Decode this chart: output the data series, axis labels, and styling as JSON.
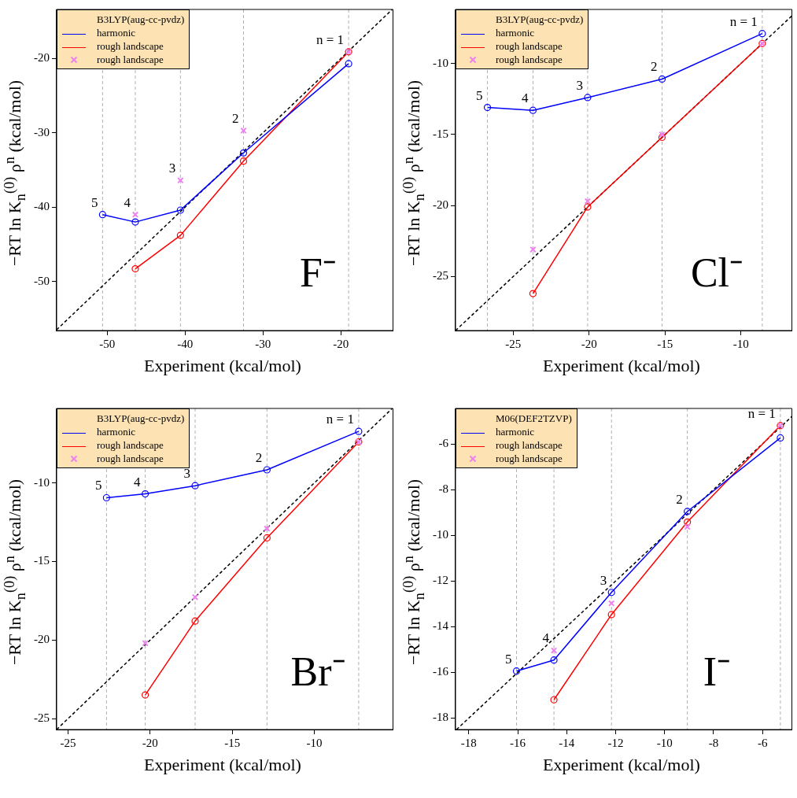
{
  "chart_data": [
    {
      "type": "line",
      "xlabel": "Experiment (kcal/mol)",
      "ylabel": "−RT ln K$_{n}$$^{(0)}$ ρ$^{n}$ (kcal/mol)",
      "legend_title": "B3LYP(aug-cc-pvdz)",
      "legend": "top left",
      "x": [
        -50.6,
        -46.4,
        -40.6,
        -32.5,
        -19.0
      ],
      "xlim": [
        -56.5,
        -13.3
      ],
      "ylim": [
        -56.6,
        -13.4
      ],
      "xticks": [
        -50,
        -40,
        -30,
        -20
      ],
      "yticks": [
        -50,
        -40,
        -30,
        -20
      ],
      "grid": false,
      "series": [
        {
          "name": "harmonic",
          "color": "#0000ff",
          "marker": "circle",
          "values": [
            -41.0,
            -42.0,
            -40.4,
            -32.7,
            -20.7
          ]
        },
        {
          "name": "rough landscape",
          "color": "#ff0000",
          "marker": "circle",
          "values": [
            null,
            -48.3,
            -43.8,
            -33.8,
            -19.1
          ]
        },
        {
          "name": "rough landscape",
          "type": "scatter",
          "color": "#ee82ee",
          "marker": "cross",
          "values": [
            null,
            -41.0,
            -36.4,
            -29.7,
            -19.1
          ]
        },
        {
          "type": "line",
          "color": "#000000",
          "marker": "none",
          "line_style": "dashed",
          "x": [
            -56.5,
            -13.4
          ],
          "values": [
            -56.5,
            -13.4
          ]
        }
      ],
      "ref_lines": [
        {
          "axis": "x",
          "value": -50.6,
          "color": "#b0b0b0",
          "line_style": "dashed"
        },
        {
          "axis": "x",
          "value": -46.4,
          "color": "#b0b0b0",
          "line_style": "dashed"
        },
        {
          "axis": "x",
          "value": -40.6,
          "color": "#b0b0b0",
          "line_style": "dashed"
        },
        {
          "axis": "x",
          "value": -32.5,
          "color": "#b0b0b0",
          "line_style": "dashed"
        },
        {
          "axis": "x",
          "value": -19.0,
          "color": "#b0b0b0",
          "line_style": "dashed"
        }
      ],
      "annotations": [
        {
          "text": "n = 1",
          "x": -19.0,
          "y": -19.1
        },
        {
          "text": "2",
          "x": -32.5,
          "y": -29.7
        },
        {
          "text": "3",
          "x": -40.6,
          "y": -36.4
        },
        {
          "text": "4",
          "x": -46.4,
          "y": -41.0
        },
        {
          "text": "5",
          "x": -50.6,
          "y": -41.0
        },
        "F⁻"
      ]
    },
    {
      "type": "line",
      "xlabel": "Experiment (kcal/mol)",
      "ylabel": "−RT ln K$_{n}$$^{(0)}$ ρ$^{n}$ (kcal/mol)",
      "legend_title": "B3LYP(aug-cc-pvdz)",
      "legend": "top left",
      "x": [
        -26.7,
        -23.7,
        -20.1,
        -15.2,
        -8.6
      ],
      "xlim": [
        -28.8,
        -6.65
      ],
      "ylim": [
        -28.8,
        -6.2
      ],
      "xticks": [
        -25,
        -20,
        -15,
        -10
      ],
      "yticks": [
        -25,
        -20,
        -15,
        -10
      ],
      "grid": false,
      "series": [
        {
          "name": "harmonic",
          "color": "#0000ff",
          "marker": "circle",
          "values": [
            -13.1,
            -13.3,
            -12.4,
            -11.1,
            -7.9
          ]
        },
        {
          "name": "rough landscape",
          "color": "#ff0000",
          "marker": "circle",
          "values": [
            null,
            -26.2,
            -20.1,
            -15.2,
            -8.6
          ]
        },
        {
          "name": "rough landscape",
          "type": "scatter",
          "color": "#ee82ee",
          "marker": "cross",
          "values": [
            null,
            -23.1,
            -19.7,
            -15.0,
            -8.6
          ]
        },
        {
          "type": "line",
          "color": "#000000",
          "marker": "none",
          "line_style": "dashed",
          "x": [
            -28.8,
            -6.65
          ],
          "values": [
            -28.8,
            -6.65
          ]
        }
      ],
      "ref_lines": [
        {
          "axis": "x",
          "value": -26.7,
          "color": "#b0b0b0",
          "line_style": "dashed"
        },
        {
          "axis": "x",
          "value": -23.7,
          "color": "#b0b0b0",
          "line_style": "dashed"
        },
        {
          "axis": "x",
          "value": -20.1,
          "color": "#b0b0b0",
          "line_style": "dashed"
        },
        {
          "axis": "x",
          "value": -15.2,
          "color": "#b0b0b0",
          "line_style": "dashed"
        },
        {
          "axis": "x",
          "value": -8.6,
          "color": "#b0b0b0",
          "line_style": "dashed"
        }
      ],
      "annotations": [
        {
          "text": "n = 1",
          "x": -8.6,
          "y": -7.9
        },
        {
          "text": "2",
          "x": -15.2,
          "y": -11.1
        },
        {
          "text": "3",
          "x": -20.1,
          "y": -12.4
        },
        {
          "text": "4",
          "x": -23.7,
          "y": -13.3
        },
        {
          "text": "5",
          "x": -26.7,
          "y": -13.1
        },
        "Cl⁻"
      ]
    },
    {
      "type": "line",
      "xlabel": "Experiment (kcal/mol)",
      "ylabel": "−RT ln K$_{n}$$^{(0)}$ ρ$^{n}$ (kcal/mol)",
      "legend_title": "B3LYP(aug-cc-pvdz)",
      "legend": "top left",
      "x": [
        -22.66,
        -20.3,
        -17.26,
        -12.88,
        -7.29
      ],
      "xlim": [
        -25.7,
        -5.2
      ],
      "ylim": [
        -25.7,
        -5.25
      ],
      "xticks": [
        -25,
        -20,
        -15,
        -10
      ],
      "yticks": [
        -25,
        -20,
        -15,
        -10
      ],
      "grid": false,
      "series": [
        {
          "name": "harmonic",
          "color": "#0000ff",
          "marker": "circle",
          "values": [
            -10.94,
            -10.69,
            -10.17,
            -9.16,
            -6.71
          ]
        },
        {
          "name": "rough landscape",
          "color": "#ff0000",
          "marker": "circle",
          "values": [
            null,
            -23.5,
            -18.79,
            -13.49,
            -7.38
          ]
        },
        {
          "name": "rough landscape",
          "type": "scatter",
          "color": "#ee82ee",
          "marker": "cross",
          "values": [
            null,
            -20.2,
            -17.27,
            -12.9,
            -7.38
          ]
        },
        {
          "type": "line",
          "color": "#000000",
          "marker": "none",
          "line_style": "dashed",
          "x": [
            -25.7,
            -5.25
          ],
          "values": [
            -25.7,
            -5.25
          ]
        }
      ],
      "ref_lines": [
        {
          "axis": "x",
          "value": -22.66,
          "color": "#b0b0b0",
          "line_style": "dashed"
        },
        {
          "axis": "x",
          "value": -20.3,
          "color": "#b0b0b0",
          "line_style": "dashed"
        },
        {
          "axis": "x",
          "value": -17.26,
          "color": "#b0b0b0",
          "line_style": "dashed"
        },
        {
          "axis": "x",
          "value": -12.88,
          "color": "#b0b0b0",
          "line_style": "dashed"
        },
        {
          "axis": "x",
          "value": -7.29,
          "color": "#b0b0b0",
          "line_style": "dashed"
        }
      ],
      "annotations": [
        {
          "text": "n = 1",
          "x": -7.29,
          "y": -6.71
        },
        {
          "text": "2",
          "x": -12.88,
          "y": -9.16
        },
        {
          "text": "3",
          "x": -17.26,
          "y": -10.17
        },
        {
          "text": "4",
          "x": -20.3,
          "y": -10.69
        },
        {
          "text": "5",
          "x": -22.66,
          "y": -10.94
        },
        "Br⁻"
      ]
    },
    {
      "type": "line",
      "xlabel": "Experiment (kcal/mol)",
      "ylabel": "−RT ln K$_{n}$$^{(0)}$ ρ$^{n}$ (kcal/mol)",
      "legend_title": "M06(DEF2TZVP)",
      "legend": "top left",
      "x": [
        -16.05,
        -14.52,
        -12.17,
        -9.07,
        -5.27
      ],
      "xlim": [
        -18.54,
        -4.8
      ],
      "ylim": [
        -18.5,
        -4.45
      ],
      "xticks": [
        -18,
        -16,
        -14,
        -12,
        -10,
        -8,
        -6
      ],
      "yticks": [
        -18,
        -16,
        -14,
        -12,
        -10,
        -8,
        -6
      ],
      "grid": false,
      "series": [
        {
          "name": "harmonic",
          "color": "#0000ff",
          "marker": "circle",
          "values": [
            -15.94,
            -15.46,
            -12.5,
            -8.96,
            -5.74
          ]
        },
        {
          "name": "rough landscape",
          "color": "#ff0000",
          "marker": "circle",
          "values": [
            null,
            -17.2,
            -13.47,
            -9.42,
            -5.2
          ]
        },
        {
          "name": "rough landscape",
          "type": "scatter",
          "color": "#ee82ee",
          "marker": "cross",
          "values": [
            null,
            -15.04,
            -12.98,
            -9.63,
            -5.2
          ]
        },
        {
          "type": "line",
          "color": "#000000",
          "marker": "none",
          "line_style": "dashed",
          "x": [
            -18.5,
            -4.8
          ],
          "values": [
            -18.5,
            -4.8
          ]
        }
      ],
      "ref_lines": [
        {
          "axis": "x",
          "value": -16.05,
          "color": "#b0b0b0",
          "line_style": "dashed"
        },
        {
          "axis": "x",
          "value": -14.52,
          "color": "#b0b0b0",
          "line_style": "dashed"
        },
        {
          "axis": "x",
          "value": -12.17,
          "color": "#b0b0b0",
          "line_style": "dashed"
        },
        {
          "axis": "x",
          "value": -9.07,
          "color": "#b0b0b0",
          "line_style": "dashed"
        },
        {
          "axis": "x",
          "value": -5.27,
          "color": "#b0b0b0",
          "line_style": "dashed"
        }
      ],
      "annotations": [
        {
          "text": "n = 1",
          "x": -5.27,
          "y": -5.2
        },
        {
          "text": "2",
          "x": -9.07,
          "y": -8.96
        },
        {
          "text": "3",
          "x": -12.17,
          "y": -12.5
        },
        {
          "text": "4",
          "x": -14.52,
          "y": -15.04
        },
        {
          "text": "5",
          "x": -16.05,
          "y": -15.94
        },
        "I⁻"
      ]
    }
  ]
}
